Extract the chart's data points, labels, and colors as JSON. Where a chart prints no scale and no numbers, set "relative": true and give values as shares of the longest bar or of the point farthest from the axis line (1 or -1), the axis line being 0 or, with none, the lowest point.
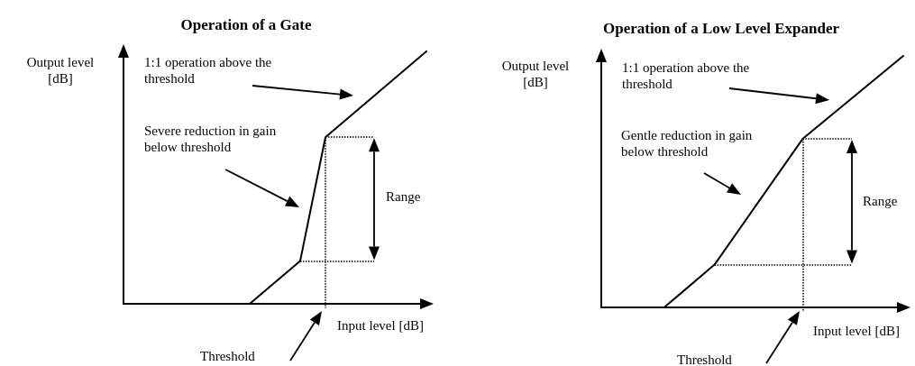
{
  "chart_data": [
    {
      "type": "line",
      "title": "Operation of a Gate",
      "xlabel": "Input level [dB]",
      "ylabel": "Output level [dB]",
      "relative": true,
      "marker": "none",
      "line_style": "solid",
      "annotations": [
        "1:1 operation above the threshold",
        "Severe reduction in gain below threshold",
        "Range",
        "Threshold"
      ],
      "categories": [
        null,
        null,
        null,
        null,
        null,
        null,
        null,
        null,
        null,
        null,
        null,
        null,
        null,
        null,
        null,
        null,
        null,
        null,
        null,
        null,
        null,
        null,
        null,
        null,
        null
      ],
      "series": [
        {
          "color": "#000000",
          "values": [
            null,
            null,
            null,
            null,
            null,
            null,
            null,
            null,
            null,
            null,
            0,
            null,
            null,
            null,
            0.17,
            null,
            0.66,
            null,
            null,
            null,
            null,
            null,
            null,
            null,
            1
          ]
        }
      ],
      "ref_lines": [
        {
          "axis": "y",
          "value": 0.66,
          "color": "#000000",
          "line_style": "dotted"
        },
        {
          "axis": "y",
          "value": 0.17,
          "color": "#000000",
          "line_style": "dotted"
        }
      ]
    },
    {
      "type": "line",
      "title": "Operation of a Low Level Expander",
      "xlabel": "Input level [dB]",
      "ylabel": "Output level [dB]",
      "relative": true,
      "marker": "none",
      "line_style": "solid",
      "annotations": [
        "1:1 operation above the threshold",
        "Gentle reduction in gain below threshold",
        "Range",
        "Threshold"
      ],
      "categories": [
        null,
        null,
        null,
        null,
        null,
        null,
        null,
        null,
        null,
        null,
        null,
        null,
        null,
        null,
        null,
        null,
        null,
        null,
        null,
        null,
        null,
        null,
        null,
        null,
        null
      ],
      "series": [
        {
          "color": "#000000",
          "values": [
            null,
            null,
            null,
            null,
            null,
            0,
            null,
            null,
            null,
            0.17,
            null,
            null,
            null,
            null,
            null,
            null,
            0.67,
            null,
            null,
            null,
            null,
            null,
            null,
            null,
            1
          ]
        }
      ],
      "ref_lines": [
        {
          "axis": "y",
          "value": 0.67,
          "color": "#000000",
          "line_style": "dotted"
        },
        {
          "axis": "y",
          "value": 0.17,
          "color": "#000000",
          "line_style": "dotted"
        }
      ]
    }
  ]
}
